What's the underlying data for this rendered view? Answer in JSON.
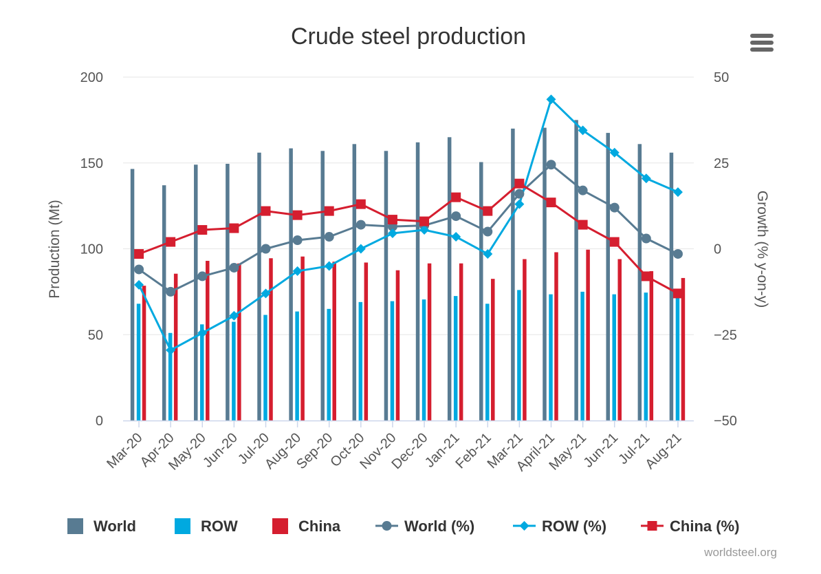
{
  "chart_data": {
    "type": "bar",
    "title": "Crude steel production",
    "categories": [
      "Mar-20",
      "Apr-20",
      "May-20",
      "Jun-20",
      "Jul-20",
      "Aug-20",
      "Sep-20",
      "Oct-20",
      "Nov-20",
      "Dec-20",
      "Jan-21",
      "Feb-21",
      "Mar-21",
      "April-21",
      "May-21",
      "Jun-21",
      "Jul-21",
      "Aug-21"
    ],
    "y_left": {
      "label": "Production (Mt)",
      "ticks": [
        "0",
        "50",
        "100",
        "150",
        "200"
      ],
      "range": [
        0,
        200
      ]
    },
    "y_right": {
      "label": "Growth (% y-on-y)",
      "ticks": [
        "−50",
        "−25",
        "0",
        "25",
        "50"
      ],
      "range": [
        -50,
        50
      ]
    },
    "grid": true,
    "legend_position": "bottom",
    "bar_series": [
      {
        "name": "World",
        "color": "#587b92",
        "values": [
          146.5,
          137,
          149,
          149.5,
          156,
          158.5,
          157,
          161,
          157,
          162,
          165,
          150.5,
          170,
          170.5,
          175,
          167.5,
          161,
          156
        ]
      },
      {
        "name": "ROW",
        "color": "#00a9e0",
        "values": [
          68,
          51,
          56,
          57.5,
          61.5,
          63.5,
          65,
          69,
          69.5,
          70.5,
          72.5,
          68,
          76,
          73.5,
          75,
          73.5,
          74.5,
          72
        ]
      },
      {
        "name": "China",
        "color": "#d51e2f",
        "values": [
          78.5,
          85.5,
          93,
          91.5,
          94.5,
          95.5,
          92.5,
          92,
          87.5,
          91.5,
          91.5,
          82.5,
          94,
          98,
          99.5,
          94,
          87,
          83
        ]
      }
    ],
    "line_series": [
      {
        "name": "World (%)",
        "color": "#587b92",
        "marker": "circle",
        "values": [
          -6,
          -12.5,
          -8,
          -5.5,
          0,
          2.5,
          3.5,
          7,
          6.5,
          6.8,
          9.5,
          5,
          16,
          24.5,
          17,
          12,
          3,
          -1.5
        ]
      },
      {
        "name": "ROW (%)",
        "color": "#00a9e0",
        "marker": "diamond",
        "values": [
          -10.5,
          -29.5,
          -24.5,
          -19.5,
          -13,
          -6.5,
          -5,
          0,
          4.5,
          5.5,
          3.5,
          -1.5,
          13,
          43.5,
          34.5,
          28,
          20.5,
          16.5
        ]
      },
      {
        "name": "China (%)",
        "color": "#d51e2f",
        "marker": "square",
        "values": [
          -1.5,
          2,
          5.5,
          6,
          11,
          9.8,
          11,
          13,
          8.5,
          8,
          15,
          11,
          19,
          13.5,
          7,
          2,
          -8,
          -13
        ]
      }
    ],
    "credit": "worldsteel.org"
  },
  "menu": {
    "icon": "hamburger-menu-icon"
  }
}
